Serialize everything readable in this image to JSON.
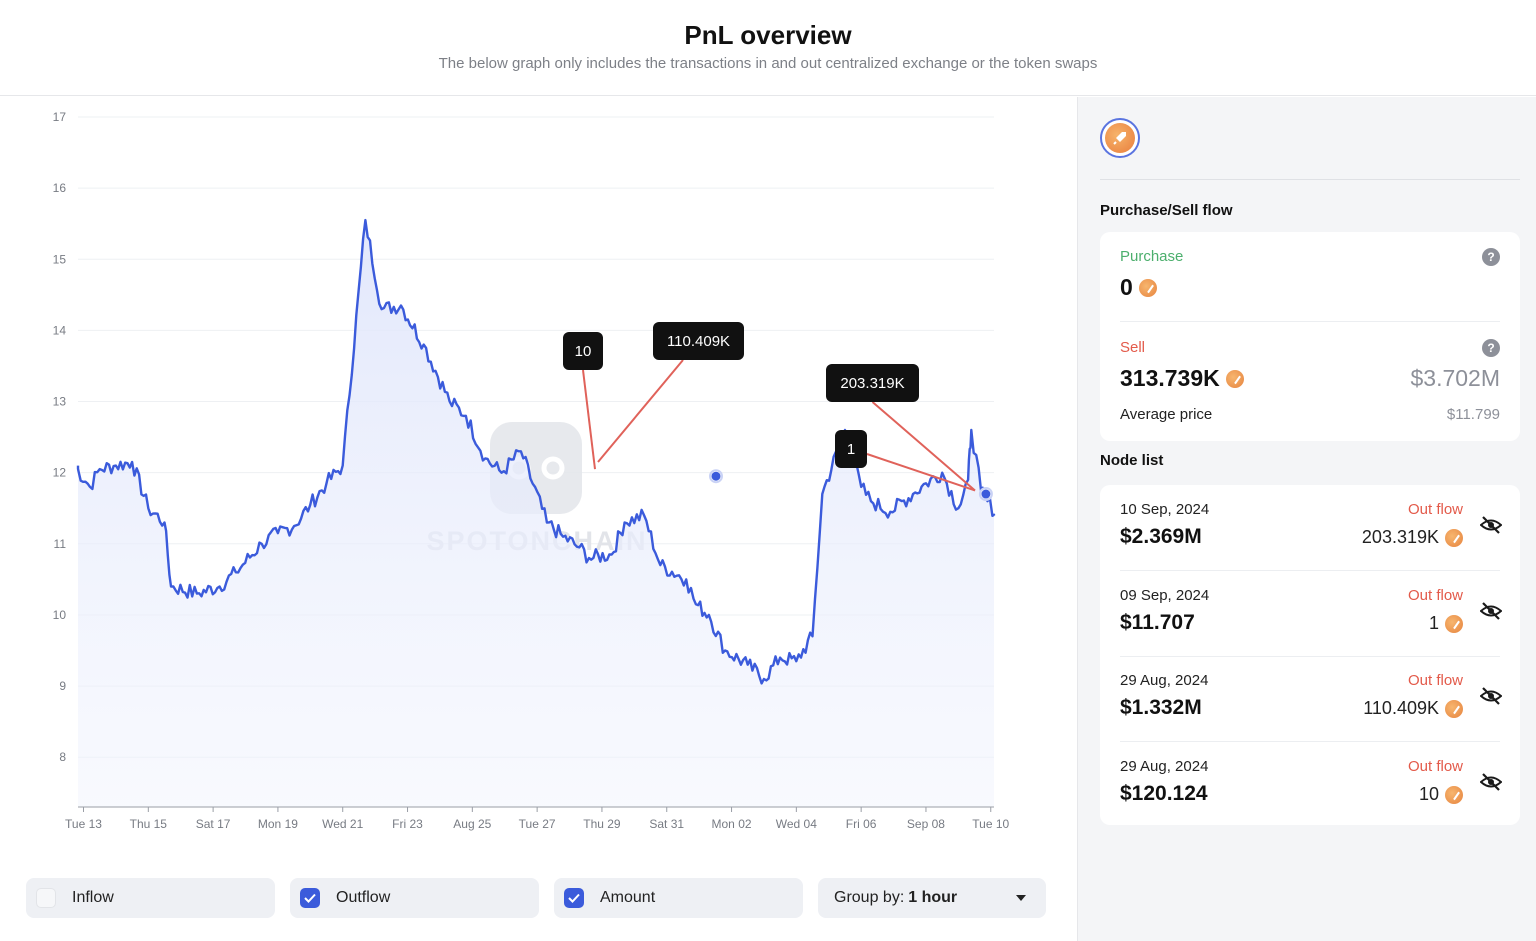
{
  "header": {
    "title": "PnL overview",
    "subtitle": "The below graph only includes the transactions in and out centralized exchange or the token swaps"
  },
  "watermark": "SPOTONCHAIN",
  "chart_data": {
    "type": "line",
    "y_ticks": [
      "8",
      "9",
      "10",
      "11",
      "12",
      "13",
      "14",
      "15",
      "16",
      "17"
    ],
    "ylim": [
      7.3,
      17
    ],
    "x_ticks": [
      "Tue 13",
      "Thu 15",
      "Sat 17",
      "Mon 19",
      "Wed 21",
      "Fri 23",
      "Aug 25",
      "Tue 27",
      "Thu 29",
      "Sat 31",
      "Mon 02",
      "Wed 04",
      "Fri 06",
      "Sep 08",
      "Tue 10"
    ],
    "xlim": [
      -0.17,
      28.1
    ],
    "series": [
      {
        "x": [
          -0.3,
          0.2,
          0.5,
          1.0,
          1.5,
          2.0,
          2.5,
          2.7,
          3.5,
          4.2,
          4.7,
          5.5,
          6.0,
          6.5,
          7.0,
          7.5,
          8.0,
          8.7,
          9.2,
          9.8,
          10.5,
          11.3,
          11.8,
          12.4,
          12.9,
          13.5,
          14.3,
          14.8,
          15.3,
          15.6,
          16.3,
          16.7,
          17.3,
          17.8,
          18.6,
          18.9,
          19.3,
          19.8,
          20.5,
          21.0,
          21.5,
          22.0,
          22.5,
          22.8,
          23.5,
          24.0,
          24.3,
          24.9,
          25.6,
          26.0,
          26.5,
          27.0,
          27.3,
          27.4,
          27.7,
          27.9,
          28.2
        ],
        "y": [
          12.1,
          11.8,
          12.05,
          12.1,
          12.15,
          11.5,
          11.3,
          10.4,
          10.3,
          10.4,
          10.6,
          11.0,
          11.15,
          11.25,
          11.55,
          11.85,
          12.1,
          15.55,
          14.3,
          14.35,
          13.8,
          13.0,
          12.8,
          12.2,
          12.0,
          12.3,
          11.3,
          11.1,
          10.95,
          10.8,
          10.85,
          11.3,
          11.4,
          10.7,
          10.5,
          10.15,
          10.0,
          9.5,
          9.3,
          9.1,
          9.4,
          9.35,
          9.7,
          11.7,
          12.6,
          11.8,
          11.6,
          11.45,
          11.7,
          11.85,
          12.0,
          11.5,
          11.9,
          12.6,
          11.75,
          11.6,
          11.4
        ],
        "values": [
          12.1,
          11.8,
          12.05,
          12.1,
          12.15,
          11.5,
          11.3,
          10.4,
          10.3,
          10.4,
          10.6,
          11.0,
          11.15,
          11.25,
          11.55,
          11.85,
          12.1,
          15.55,
          14.3,
          14.35,
          13.8,
          13.0,
          12.8,
          12.2,
          12.0,
          12.3,
          11.3,
          11.1,
          10.95,
          10.8,
          10.85,
          11.3,
          11.4,
          10.7,
          10.5,
          10.15,
          10.0,
          9.5,
          9.3,
          9.1,
          9.4,
          9.35,
          9.7,
          11.7,
          12.6,
          11.8,
          11.6,
          11.45,
          11.7,
          11.85,
          12.0,
          11.5,
          11.9,
          12.6,
          11.75,
          11.6,
          11.4
        ]
      }
    ],
    "grid": true,
    "annotations": [
      {
        "text": "10"
      },
      {
        "text": "110.409K"
      },
      {
        "text": "203.319K"
      },
      {
        "text": "1"
      }
    ]
  },
  "controls": {
    "inflow_label": "Inflow",
    "outflow_label": "Outflow",
    "amount_label": "Amount",
    "groupby_label": "Group by:",
    "groupby_value": "1 hour"
  },
  "sidebar": {
    "flow_title": "Purchase/Sell flow",
    "purchase_label": "Purchase",
    "purchase_value": "0",
    "sell_label": "Sell",
    "sell_value": "313.739K",
    "sell_usd": "$3.702M",
    "avg_label": "Average price",
    "avg_value": "$11.799",
    "help_glyph": "?",
    "node_title": "Node list",
    "nodes": [
      {
        "date": "10 Sep, 2024",
        "usd": "$2.369M",
        "type": "Out flow",
        "amount": "203.319K"
      },
      {
        "date": "09 Sep, 2024",
        "usd": "$11.707",
        "type": "Out flow",
        "amount": "1"
      },
      {
        "date": "29 Aug, 2024",
        "usd": "$1.332M",
        "type": "Out flow",
        "amount": "110.409K"
      },
      {
        "date": "29 Aug, 2024",
        "usd": "$120.124",
        "type": "Out flow",
        "amount": "10"
      }
    ]
  },
  "colors": {
    "line": "#3b5bdb",
    "purchase": "#4caf6d",
    "sell": "#e35a4a",
    "annotation_link": "#e0625a"
  }
}
